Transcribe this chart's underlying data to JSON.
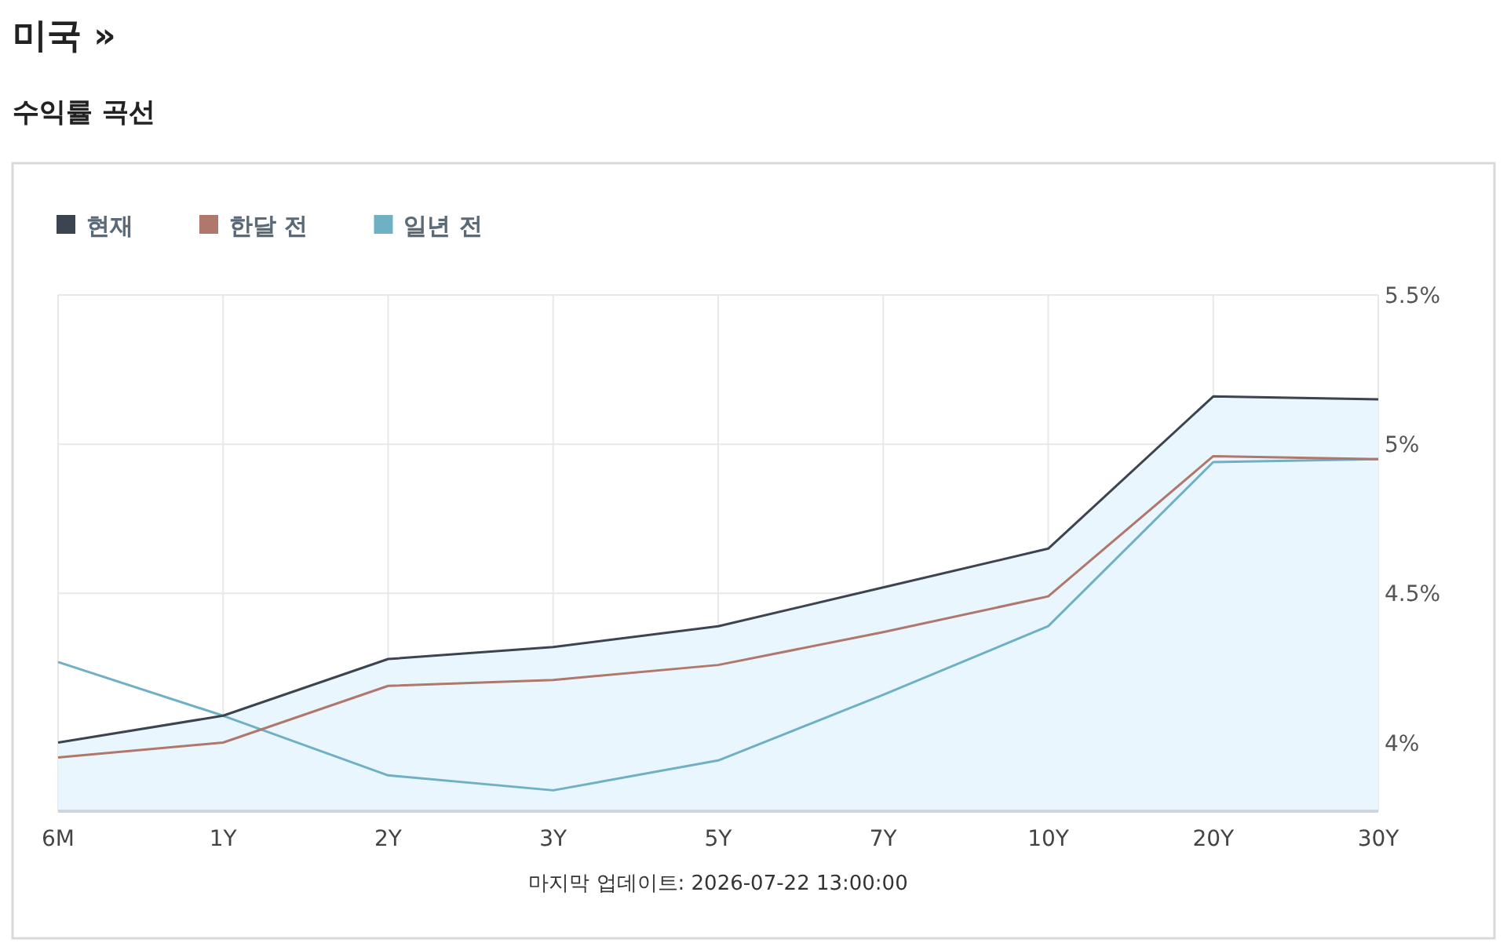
{
  "chart_data": {
    "type": "line",
    "title": "미국 »",
    "subtitle": "수익률 곡선",
    "categories": [
      "6M",
      "1Y",
      "2Y",
      "3Y",
      "5Y",
      "7Y",
      "10Y",
      "20Y",
      "30Y"
    ],
    "series": [
      {
        "name": "현재",
        "type": "area",
        "color": "#3d4451",
        "values": [
          4.0,
          4.09,
          4.28,
          4.32,
          4.39,
          4.52,
          4.65,
          5.16,
          5.15
        ]
      },
      {
        "name": "한달 전",
        "color": "#b0776c",
        "values": [
          3.95,
          4.0,
          4.19,
          4.21,
          4.26,
          4.37,
          4.49,
          4.96,
          4.95
        ]
      },
      {
        "name": "일년 전",
        "color": "#6fb0c4",
        "values": [
          4.27,
          4.09,
          3.89,
          3.84,
          3.94,
          4.16,
          4.39,
          4.94,
          4.95
        ]
      }
    ],
    "ylim": [
      3.77,
      5.5
    ],
    "yticks": [
      {
        "value": 4,
        "label": "4%"
      },
      {
        "value": 4.5,
        "label": "4.5%"
      },
      {
        "value": 5,
        "label": "5%"
      },
      {
        "value": 5.5,
        "label": "5.5%"
      }
    ],
    "grid": true,
    "legend": "top left",
    "annotations": [
      "마지막 업데이트: 2026-07-22 13:00:00"
    ]
  }
}
